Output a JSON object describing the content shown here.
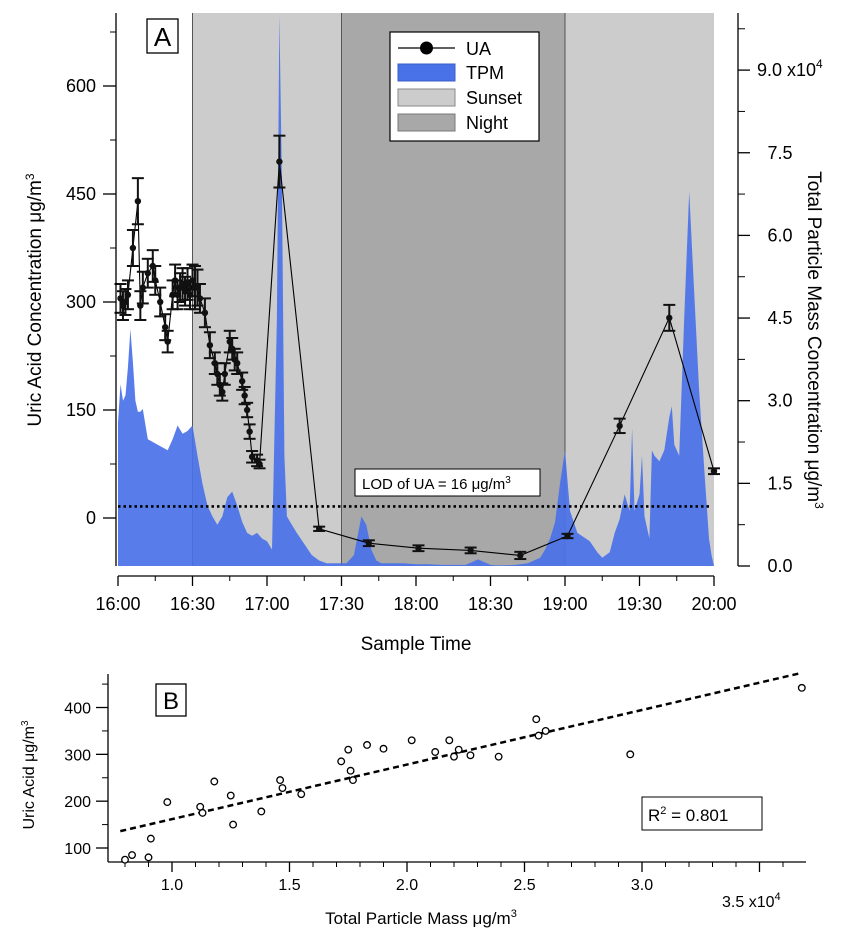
{
  "chart_data": [
    {
      "panel_label": "A",
      "type": "line",
      "xlabel": "Sample Time",
      "ylabel": "Uric Acid Concentration μg/m³",
      "ylabel_main": "Uric Acid Concentration μg/m",
      "ylabel_sup": "3",
      "y2label": "Total Particle Mass Concentration μg/m³",
      "y2label_main": "Total Particle Mass Concentration μg/m",
      "y2label_sup": "3",
      "xlim": [
        0,
        240
      ],
      "ylim": [
        -75,
        700
      ],
      "y2lim": [
        0,
        100000
      ],
      "x_ticks": [
        0,
        30,
        60,
        90,
        120,
        150,
        180,
        210,
        240
      ],
      "x_tick_labels": [
        "16:00",
        "16:30",
        "17:00",
        "17:30",
        "18:00",
        "18:30",
        "19:00",
        "19:30",
        "20:00"
      ],
      "y_ticks": [
        0,
        150,
        300,
        450,
        600
      ],
      "y_tick_labels": [
        "0",
        "150",
        "300",
        "450",
        "600"
      ],
      "y2_ticks": [
        0,
        15000,
        30000,
        45000,
        60000,
        75000,
        90000
      ],
      "y2_tick_labels": [
        "0.0",
        "1.5",
        "3.0",
        "4.5",
        "6.0",
        "7.5",
        "9.0 x10"
      ],
      "y2_exponent": "4",
      "legend": [
        {
          "label": "UA",
          "type": "line-marker",
          "color": "#000000"
        },
        {
          "label": "TPM",
          "type": "fill",
          "color": "#4a72e8"
        },
        {
          "label": "Sunset",
          "type": "fill",
          "color": "#cccccc"
        },
        {
          "label": "Night",
          "type": "fill",
          "color": "#a8a8a8"
        }
      ],
      "legend_position": "top-center",
      "shaded_regions": [
        {
          "name": "Sunset",
          "x_start": 30,
          "x_end": 90,
          "color": "#cccccc"
        },
        {
          "name": "Night",
          "x_start": 90,
          "x_end": 180,
          "color": "#a8a8a8"
        },
        {
          "name": "Sunset",
          "x_start": 180,
          "x_end": 240,
          "color": "#cccccc"
        }
      ],
      "lod_line": {
        "y": 16,
        "style": "dotted"
      },
      "annotation": {
        "text": "LOD of UA = 16 μg/m",
        "sup": "3"
      },
      "series": [
        {
          "name": "UA",
          "color": "#000000",
          "x": [
            1,
            2,
            3,
            4,
            6,
            8,
            9,
            10,
            12,
            14,
            15,
            17,
            19,
            20,
            22,
            23,
            24,
            25,
            26,
            27,
            28,
            29,
            30,
            31,
            32,
            33,
            35,
            37,
            39,
            40,
            41,
            42,
            43,
            45,
            46,
            47,
            48,
            50,
            51,
            52,
            53,
            54,
            56,
            57,
            65,
            81,
            101,
            121,
            142,
            162,
            181,
            202,
            222,
            240
          ],
          "y": [
            305,
            295,
            300,
            310,
            375,
            440,
            295,
            320,
            340,
            350,
            330,
            300,
            265,
            245,
            310,
            330,
            310,
            320,
            325,
            315,
            325,
            310,
            330,
            320,
            320,
            305,
            285,
            240,
            215,
            200,
            185,
            175,
            200,
            245,
            235,
            220,
            215,
            190,
            170,
            150,
            120,
            85,
            80,
            75,
            495,
            -15,
            -35,
            -42,
            -45,
            -52,
            -25,
            128,
            278,
            65
          ],
          "err": [
            20,
            20,
            18,
            20,
            25,
            32,
            20,
            22,
            20,
            22,
            20,
            20,
            18,
            15,
            20,
            22,
            20,
            20,
            22,
            20,
            22,
            20,
            22,
            30,
            25,
            20,
            20,
            18,
            15,
            15,
            15,
            12,
            15,
            15,
            15,
            15,
            15,
            12,
            12,
            10,
            10,
            8,
            8,
            6,
            36,
            3,
            4,
            4,
            4,
            5,
            3,
            10,
            18,
            4
          ]
        },
        {
          "name": "TPM",
          "color": "#4a72e8",
          "axis": "right",
          "x": [
            0,
            1,
            2,
            3,
            4,
            5,
            6,
            7,
            8,
            9,
            10,
            12,
            14,
            16,
            18,
            20,
            22,
            24,
            26,
            28,
            30,
            32,
            34,
            36,
            38,
            40,
            42,
            44,
            46,
            48,
            50,
            52,
            54,
            56,
            58,
            60,
            62,
            64,
            65,
            66,
            67,
            68,
            70,
            72,
            75,
            78,
            81,
            84,
            88,
            92,
            95,
            98,
            100,
            102,
            104,
            106,
            110,
            115,
            120,
            125,
            130,
            135,
            140,
            145,
            150,
            152,
            155,
            160,
            165,
            170,
            172,
            174,
            176,
            178,
            180,
            182,
            185,
            190,
            193,
            195,
            198,
            200,
            202,
            204,
            206,
            207,
            208,
            210,
            211,
            212,
            214,
            215,
            216,
            218,
            220,
            222,
            223,
            224,
            226,
            228,
            230,
            232,
            234,
            236,
            238,
            239,
            240
          ],
          "y": [
            26000,
            33000,
            30000,
            31000,
            36000,
            43000,
            37000,
            30000,
            28000,
            28000,
            28500,
            23000,
            22500,
            22000,
            21500,
            21000,
            23000,
            25500,
            24000,
            24500,
            25500,
            20000,
            15000,
            11000,
            9000,
            7500,
            9000,
            12500,
            13500,
            11000,
            8000,
            6000,
            5500,
            6000,
            5000,
            4500,
            3000,
            45000,
            100000,
            70000,
            20000,
            9000,
            7500,
            6000,
            4000,
            2000,
            1000,
            500,
            500,
            500,
            2000,
            9000,
            7500,
            3000,
            1000,
            500,
            500,
            500,
            300,
            300,
            200,
            200,
            200,
            1200,
            200,
            100,
            100,
            200,
            500,
            1500,
            3000,
            5000,
            8000,
            15000,
            21000,
            10000,
            6000,
            4500,
            2500,
            1500,
            2500,
            6000,
            8500,
            13000,
            10000,
            25000,
            10000,
            13000,
            20000,
            9000,
            5000,
            21000,
            20000,
            19000,
            21000,
            27000,
            29000,
            22000,
            20000,
            45000,
            68000,
            50000,
            32000,
            18000,
            5000,
            2000,
            0
          ]
        }
      ]
    },
    {
      "panel_label": "B",
      "type": "scatter",
      "xlabel": "Total Particle Mass μg/m³",
      "xlabel_main": "Total Particle Mass μg/m",
      "xlabel_sup": "3",
      "ylabel": "Uric Acid μg/m³",
      "ylabel_main": "Uric Acid μg/m",
      "ylabel_sup": "3",
      "xlim": [
        7500,
        37000
      ],
      "ylim": [
        60,
        480
      ],
      "x_ticks": [
        10000,
        15000,
        20000,
        25000,
        30000,
        35000
      ],
      "x_tick_labels": [
        "1.0",
        "1.5",
        "2.0",
        "2.5",
        "3.0",
        "3.5 x10"
      ],
      "x_exponent": "4",
      "y_ticks": [
        100,
        200,
        300,
        400
      ],
      "y_tick_labels": [
        "100",
        "200",
        "300",
        "400"
      ],
      "annotation": {
        "text": "R",
        "sup": "2",
        "tail": " = 0.801"
      },
      "fit_line": {
        "x": [
          7800,
          36800
        ],
        "y": [
          136,
          474
        ],
        "style": "dashed"
      },
      "series": [
        {
          "name": "UA vs TPM",
          "x": [
            8000,
            8300,
            9000,
            9100,
            9800,
            11200,
            11300,
            11800,
            12500,
            12600,
            13800,
            14600,
            14700,
            15500,
            17200,
            17500,
            17600,
            17700,
            18300,
            19000,
            20200,
            21200,
            21800,
            22000,
            22200,
            22700,
            23900,
            25500,
            25600,
            25900,
            29500,
            36800
          ],
          "y": [
            75,
            85,
            80,
            120,
            198,
            188,
            175,
            242,
            212,
            150,
            178,
            245,
            228,
            215,
            285,
            310,
            265,
            245,
            320,
            312,
            330,
            305,
            330,
            295,
            310,
            298,
            295,
            375,
            340,
            350,
            300,
            442
          ]
        }
      ]
    }
  ]
}
